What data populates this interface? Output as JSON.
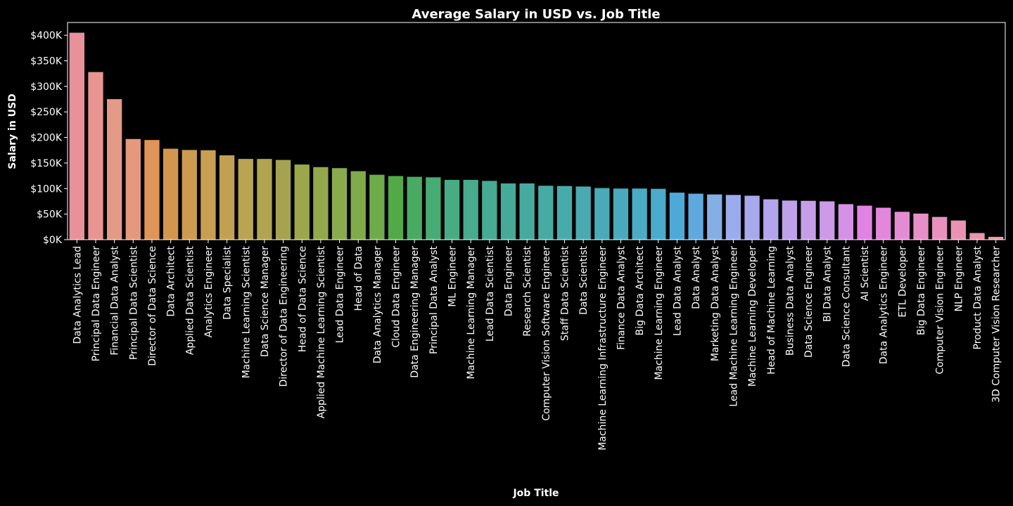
{
  "chart_data": {
    "type": "bar",
    "title": "Average Salary in USD vs. Job Title",
    "xlabel": "Job Title",
    "ylabel": "Salary in USD",
    "ylim": [
      0,
      425000
    ],
    "yticks": [
      0,
      50000,
      100000,
      150000,
      200000,
      250000,
      300000,
      350000,
      400000
    ],
    "ytick_labels": [
      "$0K",
      "$50K",
      "$100K",
      "$150K",
      "$200K",
      "$250K",
      "$300K",
      "$350K",
      "$400K"
    ],
    "grid": false,
    "legend": "none",
    "categories": [
      "Data Analytics Lead",
      "Principal Data Engineer",
      "Financial Data Analyst",
      "Principal Data Scientist",
      "Director of Data Science",
      "Data Architect",
      "Applied Data Scientist",
      "Analytics Engineer",
      "Data Specialist",
      "Machine Learning Scientist",
      "Data Science Manager",
      "Director of Data Engineering",
      "Head of Data Science",
      "Applied Machine Learning Scientist",
      "Lead Data Engineer",
      "Head of Data",
      "Data Analytics Manager",
      "Cloud Data Engineer",
      "Data Engineering Manager",
      "Principal Data Analyst",
      "ML Engineer",
      "Machine Learning Manager",
      "Lead Data Scientist",
      "Data Engineer",
      "Research Scientist",
      "Computer Vision Software Engineer",
      "Staff Data Scientist",
      "Data Scientist",
      "Machine Learning Infrastructure Engineer",
      "Finance Data Analyst",
      "Big Data Architect",
      "Machine Learning Engineer",
      "Lead Data Analyst",
      "Data Analyst",
      "Marketing Data Analyst",
      "Lead Machine Learning Engineer",
      "Machine Learning Developer",
      "Head of Machine Learning",
      "Business Data Analyst",
      "Data Science Engineer",
      "BI Data Analyst",
      "Data Science Consultant",
      "AI Scientist",
      "Data Analytics Engineer",
      "ETL Developer",
      "Big Data Engineer",
      "Computer Vision Engineer",
      "NLP Engineer",
      "Product Data Analyst",
      "3D Computer Vision Researcher"
    ],
    "values": [
      405000,
      328000,
      275000,
      197000,
      195000,
      178000,
      175500,
      175000,
      165000,
      158000,
      158000,
      156000,
      147000,
      142000,
      140000,
      134000,
      127000,
      124500,
      123000,
      122000,
      117000,
      117000,
      115000,
      110000,
      110000,
      105500,
      105000,
      104000,
      101000,
      100000,
      100000,
      99500,
      92000,
      90000,
      88500,
      87500,
      86000,
      79000,
      76500,
      76000,
      75000,
      69500,
      66500,
      62500,
      54500,
      51000,
      44500,
      37500,
      13000,
      5500
    ],
    "colors": [
      "#e8919b",
      "#e89591",
      "#e39a86",
      "#e4997c",
      "#df9558",
      "#d3964f",
      "#cc9b4f",
      "#c89f51",
      "#c1a151",
      "#b8a451",
      "#b0a451",
      "#a5a350",
      "#9ca74c",
      "#92a84a",
      "#8aab4b",
      "#7fab4b",
      "#6fab4b",
      "#52aa47",
      "#49ab61",
      "#47ab74",
      "#47ac83",
      "#47ab8c",
      "#46ab93",
      "#47aa99",
      "#47aa9f",
      "#47aba4",
      "#48abab",
      "#49aab1",
      "#4aaab7",
      "#4aaabd",
      "#4aabc4",
      "#4babcd",
      "#4ea9d9",
      "#5fa9de",
      "#85aee5",
      "#9aaceb",
      "#a8a9ed",
      "#b2a5ed",
      "#bea1ea",
      "#c69ee8",
      "#cc9ae6",
      "#d491e6",
      "#e282e3",
      "#e387dd",
      "#e48cd3",
      "#e68fc8",
      "#e891be",
      "#e893b4",
      "#e895ab",
      "#e898a2"
    ]
  }
}
